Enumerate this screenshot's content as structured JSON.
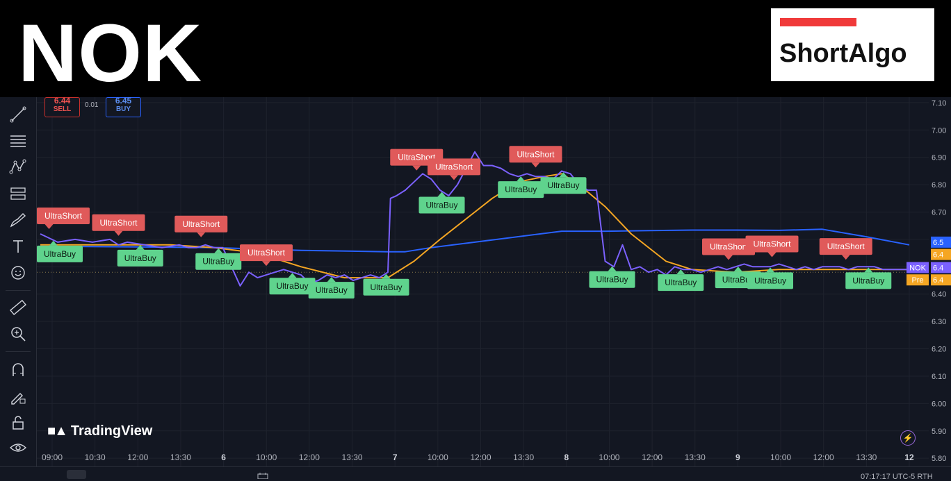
{
  "header": {
    "ticker": "NOK",
    "logo_text": "ShortAlgo"
  },
  "trade_panel": {
    "sell_price": "6.44",
    "sell_label": "SELL",
    "spread": "0.01",
    "buy_price": "6.45",
    "buy_label": "BUY"
  },
  "watermark": "TradingView",
  "bottom": {
    "clock_fragment": "07:17:17 UTC-5  RTH"
  },
  "chart_data": {
    "type": "line",
    "price_axis_ticks": [
      "7.10",
      "7.00",
      "6.90",
      "6.80",
      "6.70",
      "6.60",
      "6.50",
      "6.40",
      "6.30",
      "6.20",
      "6.10",
      "6.00",
      "5.90",
      "5.80"
    ],
    "ylim": [
      5.77,
      7.12
    ],
    "time_labels": [
      "09:00",
      "10:30",
      "12:00",
      "13:30",
      "6",
      "10:00",
      "12:00",
      "13:30",
      "7",
      "10:00",
      "12:00",
      "13:30",
      "8",
      "10:00",
      "12:00",
      "13:30",
      "9",
      "10:00",
      "12:00",
      "13:30",
      "12"
    ],
    "xlim": [
      0,
      100
    ],
    "series": [
      {
        "color": "#7b61ff",
        "x": [
          0,
          2,
          4,
          6,
          8,
          9,
          10,
          12,
          14,
          16,
          17,
          18,
          19,
          20,
          21,
          22,
          23,
          24,
          25,
          26,
          27,
          28,
          29,
          30,
          31,
          32,
          33,
          34,
          35,
          36,
          37,
          38,
          39,
          40,
          40.3,
          41,
          42,
          43,
          44,
          45,
          46,
          47,
          48,
          49,
          50,
          51,
          52,
          53,
          54,
          55,
          56,
          57,
          58,
          59,
          60,
          61,
          62,
          63,
          64,
          65,
          66,
          67,
          68,
          69,
          70,
          71,
          72,
          73,
          74,
          75,
          76,
          77,
          78,
          79,
          80,
          81,
          82,
          83,
          84,
          85,
          86,
          87,
          88,
          89,
          90,
          91,
          92,
          93,
          94,
          95,
          96,
          97,
          98,
          99,
          100
        ],
        "values": [
          6.62,
          6.59,
          6.6,
          6.59,
          6.6,
          6.58,
          6.59,
          6.58,
          6.57,
          6.58,
          6.57,
          6.57,
          6.58,
          6.57,
          6.57,
          6.5,
          6.43,
          6.48,
          6.46,
          6.47,
          6.48,
          6.49,
          6.48,
          6.47,
          6.44,
          6.45,
          6.47,
          6.46,
          6.47,
          6.45,
          6.46,
          6.47,
          6.46,
          6.48,
          6.75,
          6.76,
          6.78,
          6.81,
          6.84,
          6.82,
          6.78,
          6.76,
          6.8,
          6.86,
          6.92,
          6.87,
          6.87,
          6.86,
          6.84,
          6.83,
          6.84,
          6.83,
          6.83,
          6.82,
          6.85,
          6.84,
          6.8,
          6.78,
          6.78,
          6.52,
          6.5,
          6.58,
          6.49,
          6.5,
          6.48,
          6.49,
          6.47,
          6.5,
          6.49,
          6.49,
          6.48,
          6.49,
          6.5,
          6.49,
          6.5,
          6.51,
          6.5,
          6.5,
          6.5,
          6.51,
          6.5,
          6.49,
          6.5,
          6.49,
          6.5,
          6.5,
          6.5,
          6.49,
          6.5,
          6.5,
          6.5,
          6.49,
          6.49,
          6.49,
          6.49
        ]
      },
      {
        "color": "#f5a623",
        "x": [
          0,
          5,
          10,
          15,
          20,
          25,
          30,
          35,
          40,
          43,
          46,
          50,
          52,
          55,
          58,
          60,
          62,
          65,
          68,
          72,
          75,
          80,
          85,
          90,
          95,
          100
        ],
        "values": [
          6.58,
          6.58,
          6.58,
          6.58,
          6.57,
          6.55,
          6.5,
          6.46,
          6.46,
          6.52,
          6.6,
          6.7,
          6.75,
          6.81,
          6.83,
          6.84,
          6.8,
          6.72,
          6.62,
          6.52,
          6.49,
          6.48,
          6.49,
          6.49,
          6.49,
          6.49
        ]
      },
      {
        "color": "#2962ff",
        "x": [
          0,
          10,
          20,
          30,
          40,
          42,
          45,
          50,
          55,
          60,
          65,
          70,
          75,
          80,
          85,
          90,
          95,
          100
        ],
        "values": [
          6.575,
          6.573,
          6.57,
          6.56,
          6.555,
          6.555,
          6.57,
          6.59,
          6.61,
          6.63,
          6.63,
          6.632,
          6.634,
          6.634,
          6.633,
          6.637,
          6.61,
          6.58
        ]
      }
    ],
    "price_labels": [
      {
        "text": "6.5",
        "color": "#2962ff"
      },
      {
        "text": "6.4",
        "color": "#f5a623"
      },
      {
        "text": "6.4",
        "color": "#7b61ff",
        "tag": "NOK"
      },
      {
        "text": "6.4",
        "color": "#f5a623",
        "tag": "Pre"
      }
    ],
    "signals": [
      {
        "text": "UltraShort",
        "type": "short",
        "x": 1.0
      },
      {
        "text": "UltraBuy",
        "type": "buy",
        "x": 1.5
      },
      {
        "text": "UltraShort",
        "type": "short",
        "x": 9.0
      },
      {
        "text": "UltraBuy",
        "type": "buy",
        "x": 11.5
      },
      {
        "text": "UltraShort",
        "type": "short",
        "x": 18.5
      },
      {
        "text": "UltraBuy",
        "type": "buy",
        "x": 20.5
      },
      {
        "text": "UltraShort",
        "type": "short",
        "x": 26.0
      },
      {
        "text": "UltraBuy",
        "type": "buy",
        "x": 29.0
      },
      {
        "text": "UltraBuy",
        "type": "buy",
        "x": 33.5
      },
      {
        "text": "UltraBuy",
        "type": "buy",
        "x": 39.8
      },
      {
        "text": "UltraShort",
        "type": "short",
        "x": 43.3
      },
      {
        "text": "UltraShort",
        "type": "short",
        "x": 47.6
      },
      {
        "text": "UltraBuy",
        "type": "buy",
        "x": 46.2
      },
      {
        "text": "UltraShort",
        "type": "short",
        "x": 57.0
      },
      {
        "text": "UltraBuy",
        "type": "buy",
        "x": 55.3
      },
      {
        "text": "UltraBuy",
        "type": "buy",
        "x": 60.2
      },
      {
        "text": "UltraBuy",
        "type": "buy",
        "x": 65.8
      },
      {
        "text": "UltraBuy",
        "type": "buy",
        "x": 73.7
      },
      {
        "text": "UltraShort",
        "type": "short",
        "x": 79.2
      },
      {
        "text": "UltraBuy",
        "type": "buy",
        "x": 80.3
      },
      {
        "text": "UltraShort",
        "type": "short",
        "x": 84.2
      },
      {
        "text": "UltraBuy",
        "type": "buy",
        "x": 84.0
      },
      {
        "text": "UltraShort",
        "type": "short",
        "x": 92.7
      },
      {
        "text": "UltraBuy",
        "type": "buy",
        "x": 95.3
      }
    ],
    "grid": true
  }
}
